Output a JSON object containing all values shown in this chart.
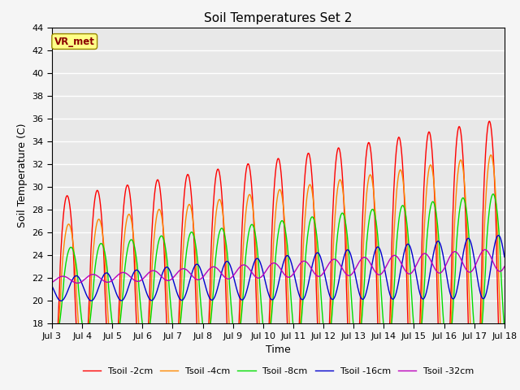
{
  "title": "Soil Temperatures Set 2",
  "xlabel": "Time",
  "ylabel": "Soil Temperature (C)",
  "ylim": [
    18,
    44
  ],
  "yticks": [
    18,
    20,
    22,
    24,
    26,
    28,
    30,
    32,
    34,
    36,
    38,
    40,
    42,
    44
  ],
  "xtick_labels": [
    "Jul 3",
    "Jul 4",
    "Jul 5",
    "Jul 6",
    "Jul 7",
    "Jul 8",
    "Jul 9",
    "Jul 10",
    "Jul 11",
    "Jul 12",
    "Jul 13",
    "Jul 14",
    "Jul 15",
    "Jul 16",
    "Jul 17",
    "Jul 18"
  ],
  "series_colors": [
    "#ff0000",
    "#ff8800",
    "#00dd00",
    "#0000cc",
    "#bb00bb"
  ],
  "series_labels": [
    "Tsoil -2cm",
    "Tsoil -4cm",
    "Tsoil -8cm",
    "Tsoil -16cm",
    "Tsoil -32cm"
  ],
  "line_width": 1.0,
  "bg_color": "#e8e8e8",
  "annotation_text": "VR_met",
  "annotation_bg": "#ffff88",
  "annotation_border": "#998800"
}
